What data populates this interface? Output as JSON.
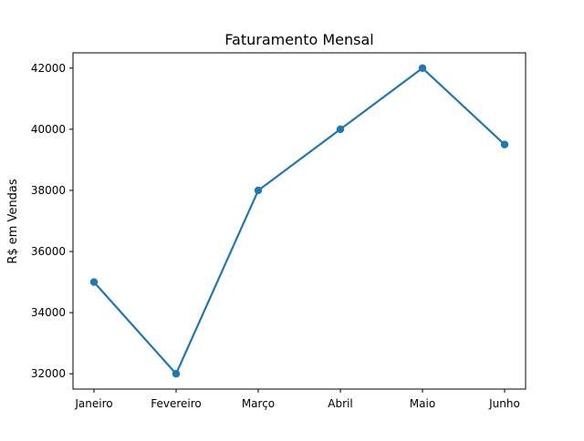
{
  "chart_data": {
    "type": "line",
    "title": "Faturamento Mensal",
    "xlabel": "",
    "ylabel": "R$ em Vendas",
    "categories": [
      "Janeiro",
      "Fevereiro",
      "Março",
      "Abril",
      "Maio",
      "Junho"
    ],
    "series": [
      {
        "values": [
          35000,
          32000,
          38000,
          40000,
          42000,
          39500
        ],
        "color": "#1f77b4",
        "marker": "circle"
      }
    ],
    "ylim": [
      31500,
      42500
    ],
    "yticks": [
      32000,
      34000,
      36000,
      38000,
      40000,
      42000
    ],
    "ytick_labels": [
      "32000",
      "34000",
      "36000",
      "38000",
      "40000",
      "42000"
    ],
    "grid": false,
    "legend": "none"
  }
}
